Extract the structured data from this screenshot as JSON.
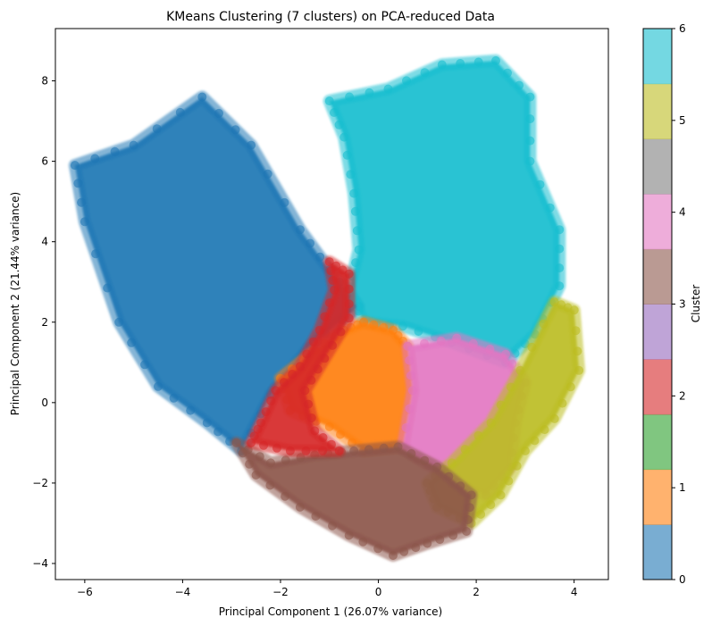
{
  "chart_data": {
    "type": "scatter",
    "title": "KMeans Clustering (7 clusters) on PCA-reduced Data",
    "xlabel": "Principal Component 1 (26.07% variance)",
    "ylabel": "Principal Component 2 (21.44% variance)",
    "xlim": [
      -6.6,
      4.7
    ],
    "ylim": [
      -4.4,
      9.3
    ],
    "xticks": [
      -6,
      -4,
      -2,
      0,
      2,
      4
    ],
    "yticks": [
      -4,
      -2,
      0,
      2,
      4,
      6,
      8
    ],
    "grid": false,
    "colorbar": {
      "label": "Cluster",
      "ticks": [
        0,
        1,
        2,
        3,
        4,
        5,
        6
      ],
      "range": [
        0,
        6
      ],
      "colors": [
        "#1f77b4",
        "#ff7f0e",
        "#2ca02c",
        "#d62728",
        "#9467bd",
        "#8c564b",
        "#e377c2",
        "#7f7f7f",
        "#bcbd22",
        "#17becf"
      ]
    },
    "clusters": [
      {
        "id": 0,
        "color": "#1f77b4",
        "polygon": [
          [
            -6.2,
            5.9
          ],
          [
            -5.0,
            6.4
          ],
          [
            -3.6,
            7.6
          ],
          [
            -2.6,
            6.4
          ],
          [
            -1.6,
            4.3
          ],
          [
            -1.0,
            3.3
          ],
          [
            -0.4,
            2.4
          ],
          [
            -1.4,
            1.4
          ],
          [
            -2.2,
            0.2
          ],
          [
            -2.8,
            -1.2
          ],
          [
            -3.5,
            -0.5
          ],
          [
            -4.5,
            0.4
          ],
          [
            -5.3,
            2.0
          ],
          [
            -6.0,
            4.5
          ]
        ]
      },
      {
        "id": 6,
        "color": "#17becf",
        "polygon": [
          [
            -1.0,
            7.5
          ],
          [
            0.2,
            7.8
          ],
          [
            1.3,
            8.4
          ],
          [
            2.4,
            8.5
          ],
          [
            3.1,
            7.6
          ],
          [
            3.1,
            6.0
          ],
          [
            3.7,
            4.3
          ],
          [
            3.7,
            2.9
          ],
          [
            3.2,
            1.7
          ],
          [
            2.6,
            1.0
          ],
          [
            1.5,
            1.5
          ],
          [
            0.5,
            1.9
          ],
          [
            -0.3,
            2.0
          ],
          [
            -0.6,
            2.8
          ],
          [
            -0.4,
            3.8
          ],
          [
            -0.5,
            5.2
          ],
          [
            -0.7,
            6.6
          ]
        ]
      },
      {
        "id": 1,
        "color": "#ff7f0e",
        "polygon": [
          [
            -2.0,
            0.6
          ],
          [
            -1.3,
            1.3
          ],
          [
            -0.7,
            1.8
          ],
          [
            -0.3,
            2.0
          ],
          [
            0.3,
            1.8
          ],
          [
            0.6,
            1.4
          ],
          [
            0.7,
            0.3
          ],
          [
            0.5,
            -1.1
          ],
          [
            -0.3,
            -1.2
          ],
          [
            -1.0,
            -0.6
          ],
          [
            -1.8,
            -0.2
          ]
        ]
      },
      {
        "id": 4,
        "color": "#e377c2",
        "polygon": [
          [
            0.6,
            1.4
          ],
          [
            1.6,
            1.6
          ],
          [
            2.6,
            1.2
          ],
          [
            3.0,
            0.5
          ],
          [
            2.8,
            -0.5
          ],
          [
            2.7,
            -1.6
          ],
          [
            2.2,
            -2.3
          ],
          [
            1.5,
            -1.9
          ],
          [
            0.8,
            -1.4
          ],
          [
            0.5,
            -1.1
          ],
          [
            0.7,
            0.3
          ]
        ]
      },
      {
        "id": 5,
        "color": "#bcbd22",
        "polygon": [
          [
            1.0,
            -2.0
          ],
          [
            1.5,
            -1.5
          ],
          [
            2.3,
            -0.5
          ],
          [
            2.9,
            0.8
          ],
          [
            3.6,
            2.5
          ],
          [
            4.0,
            2.3
          ],
          [
            4.1,
            0.8
          ],
          [
            3.6,
            -0.4
          ],
          [
            3.0,
            -1.2
          ],
          [
            2.5,
            -2.3
          ],
          [
            1.9,
            -3.0
          ],
          [
            1.2,
            -2.6
          ]
        ]
      },
      {
        "id": 3,
        "color": "#8c564b",
        "polygon": [
          [
            -2.9,
            -1.0
          ],
          [
            -2.2,
            -1.5
          ],
          [
            -1.3,
            -1.3
          ],
          [
            -0.5,
            -1.2
          ],
          [
            0.4,
            -1.1
          ],
          [
            1.2,
            -1.6
          ],
          [
            1.9,
            -2.3
          ],
          [
            1.8,
            -3.2
          ],
          [
            1.0,
            -3.5
          ],
          [
            0.3,
            -3.8
          ],
          [
            -0.6,
            -3.3
          ],
          [
            -1.6,
            -2.6
          ],
          [
            -2.5,
            -1.8
          ]
        ]
      },
      {
        "id": 2,
        "color": "#d62728",
        "polygon": [
          [
            -2.4,
            -0.5
          ],
          [
            -2.1,
            0.3
          ],
          [
            -1.6,
            0.9
          ],
          [
            -1.2,
            1.8
          ],
          [
            -0.9,
            2.8
          ],
          [
            -1.0,
            3.5
          ],
          [
            -0.6,
            3.2
          ],
          [
            -0.6,
            2.1
          ],
          [
            -1.1,
            1.1
          ],
          [
            -1.5,
            0.3
          ],
          [
            -1.3,
            -0.7
          ],
          [
            -0.8,
            -1.2
          ],
          [
            -1.8,
            -1.2
          ],
          [
            -2.6,
            -1.0
          ]
        ]
      }
    ]
  }
}
